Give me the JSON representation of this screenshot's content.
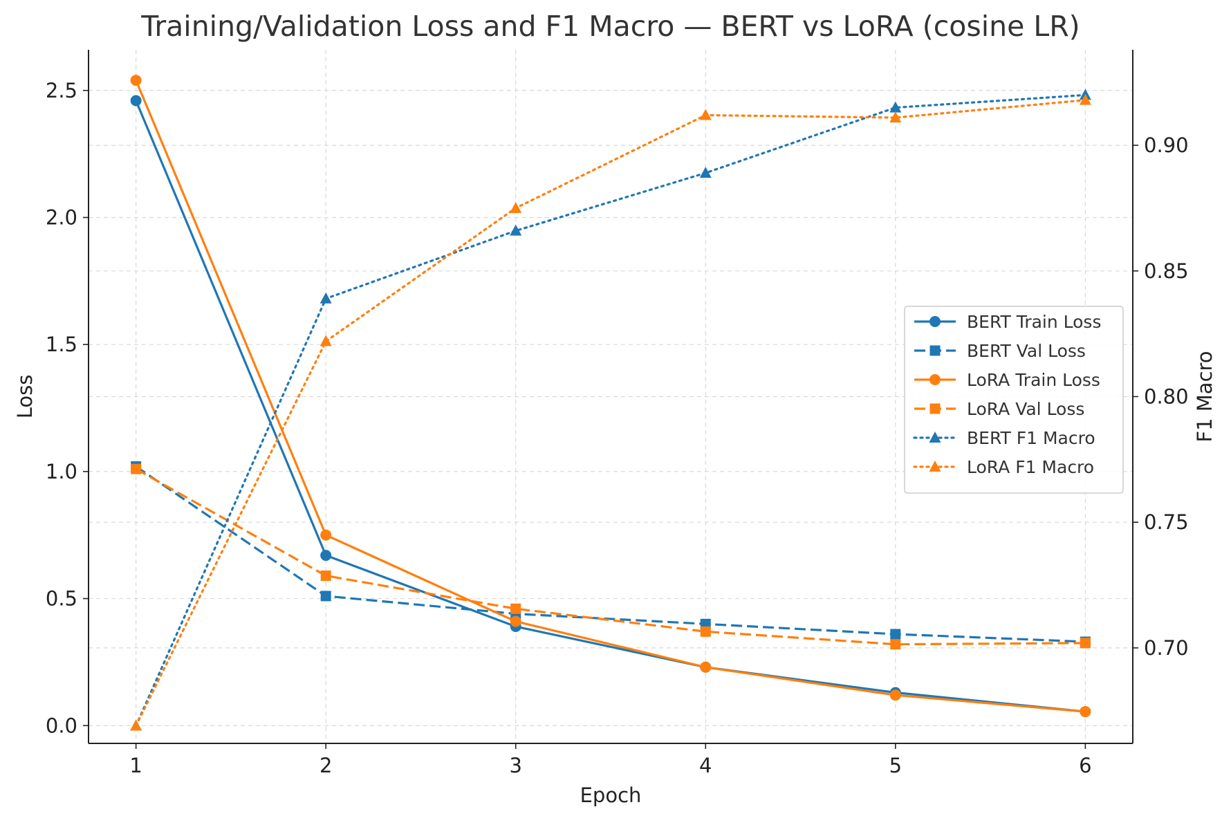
{
  "chart_data": {
    "type": "line",
    "title": "Training/Validation Loss and F1 Macro — BERT vs LoRA (cosine LR)",
    "xlabel": "Epoch",
    "ylabel": "Loss",
    "y2label": "F1 Macro",
    "x": [
      1,
      2,
      3,
      4,
      5,
      6
    ],
    "xlim": [
      0.75,
      6.25
    ],
    "ylim": [
      -0.07,
      2.66
    ],
    "y2lim": [
      0.662,
      0.938
    ],
    "xticks": [
      "1",
      "2",
      "3",
      "4",
      "5",
      "6"
    ],
    "yticks": [
      "0.0",
      "0.5",
      "1.0",
      "1.5",
      "2.0",
      "2.5"
    ],
    "y2ticks": [
      "0.70",
      "0.75",
      "0.80",
      "0.85",
      "0.90"
    ],
    "grid": true,
    "legend_position": "right",
    "series": [
      {
        "name": "BERT Train Loss",
        "axis": "left",
        "color": "#1f77b4",
        "style": "solid",
        "marker": "circle",
        "values": [
          2.46,
          0.67,
          0.39,
          0.23,
          0.13,
          0.055
        ]
      },
      {
        "name": "BERT Val Loss",
        "axis": "left",
        "color": "#1f77b4",
        "style": "dashed",
        "marker": "square",
        "values": [
          1.02,
          0.51,
          0.44,
          0.4,
          0.36,
          0.33
        ]
      },
      {
        "name": "LoRA Train Loss",
        "axis": "left",
        "color": "#ff7f0e",
        "style": "solid",
        "marker": "circle",
        "values": [
          2.54,
          0.75,
          0.41,
          0.23,
          0.12,
          0.055
        ]
      },
      {
        "name": "LoRA Val Loss",
        "axis": "left",
        "color": "#ff7f0e",
        "style": "dashed",
        "marker": "square",
        "values": [
          1.01,
          0.59,
          0.46,
          0.37,
          0.32,
          0.325
        ]
      },
      {
        "name": "BERT F1 Macro",
        "axis": "right",
        "color": "#1f77b4",
        "style": "dotted",
        "marker": "triangle",
        "values": [
          0.669,
          0.839,
          0.866,
          0.889,
          0.915,
          0.92
        ]
      },
      {
        "name": "LoRA F1 Macro",
        "axis": "right",
        "color": "#ff7f0e",
        "style": "dotted",
        "marker": "triangle",
        "values": [
          0.669,
          0.822,
          0.875,
          0.912,
          0.911,
          0.918
        ]
      }
    ]
  }
}
